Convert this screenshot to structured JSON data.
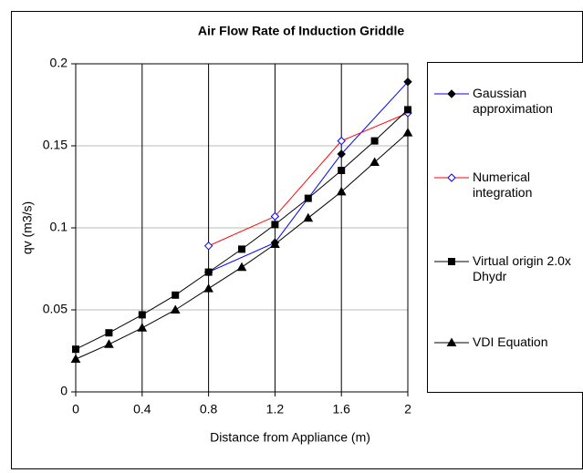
{
  "chart_data": {
    "type": "line",
    "title": "Air Flow Rate of Induction Griddle",
    "x_label": "Distance from Appliance (m)",
    "y_label": "qv (m3/s)",
    "xlim": [
      0,
      2
    ],
    "xticks": [
      0,
      0.4,
      0.8,
      1.2,
      1.6,
      2
    ],
    "ylim": [
      0,
      0.2
    ],
    "yticks": [
      0,
      0.05,
      0.1,
      0.15,
      0.2
    ],
    "grid": true,
    "legend": "right",
    "series": [
      {
        "name": "Gaussian approximation",
        "color": "#0000ff",
        "marker": "diamond",
        "marker_fill": "#000000",
        "x": [
          0.8,
          1.2,
          1.6,
          2
        ],
        "values": [
          0.073,
          0.091,
          0.145,
          0.189
        ]
      },
      {
        "name": "Numerical integration",
        "color": "#ff0000",
        "marker": "diamond",
        "marker_fill": "#ffffff",
        "marker_stroke": "#0000ff",
        "x": [
          0.8,
          1.2,
          1.6,
          2
        ],
        "values": [
          0.089,
          0.107,
          0.153,
          0.17
        ]
      },
      {
        "name": "Virtual origin 2.0x Dhydr",
        "color": "#000000",
        "marker": "square",
        "marker_fill": "#000000",
        "x": [
          0,
          0.2,
          0.4,
          0.6,
          0.8,
          1.0,
          1.2,
          1.4,
          1.6,
          1.8,
          2
        ],
        "values": [
          0.026,
          0.036,
          0.047,
          0.059,
          0.073,
          0.087,
          0.102,
          0.118,
          0.135,
          0.153,
          0.172
        ]
      },
      {
        "name": "VDI Equation",
        "color": "#000000",
        "marker": "triangle",
        "marker_fill": "#000000",
        "x": [
          0,
          0.2,
          0.4,
          0.6,
          0.8,
          1.0,
          1.2,
          1.4,
          1.6,
          1.8,
          2
        ],
        "values": [
          0.02,
          0.029,
          0.039,
          0.05,
          0.063,
          0.076,
          0.09,
          0.106,
          0.122,
          0.14,
          0.158
        ]
      }
    ]
  }
}
